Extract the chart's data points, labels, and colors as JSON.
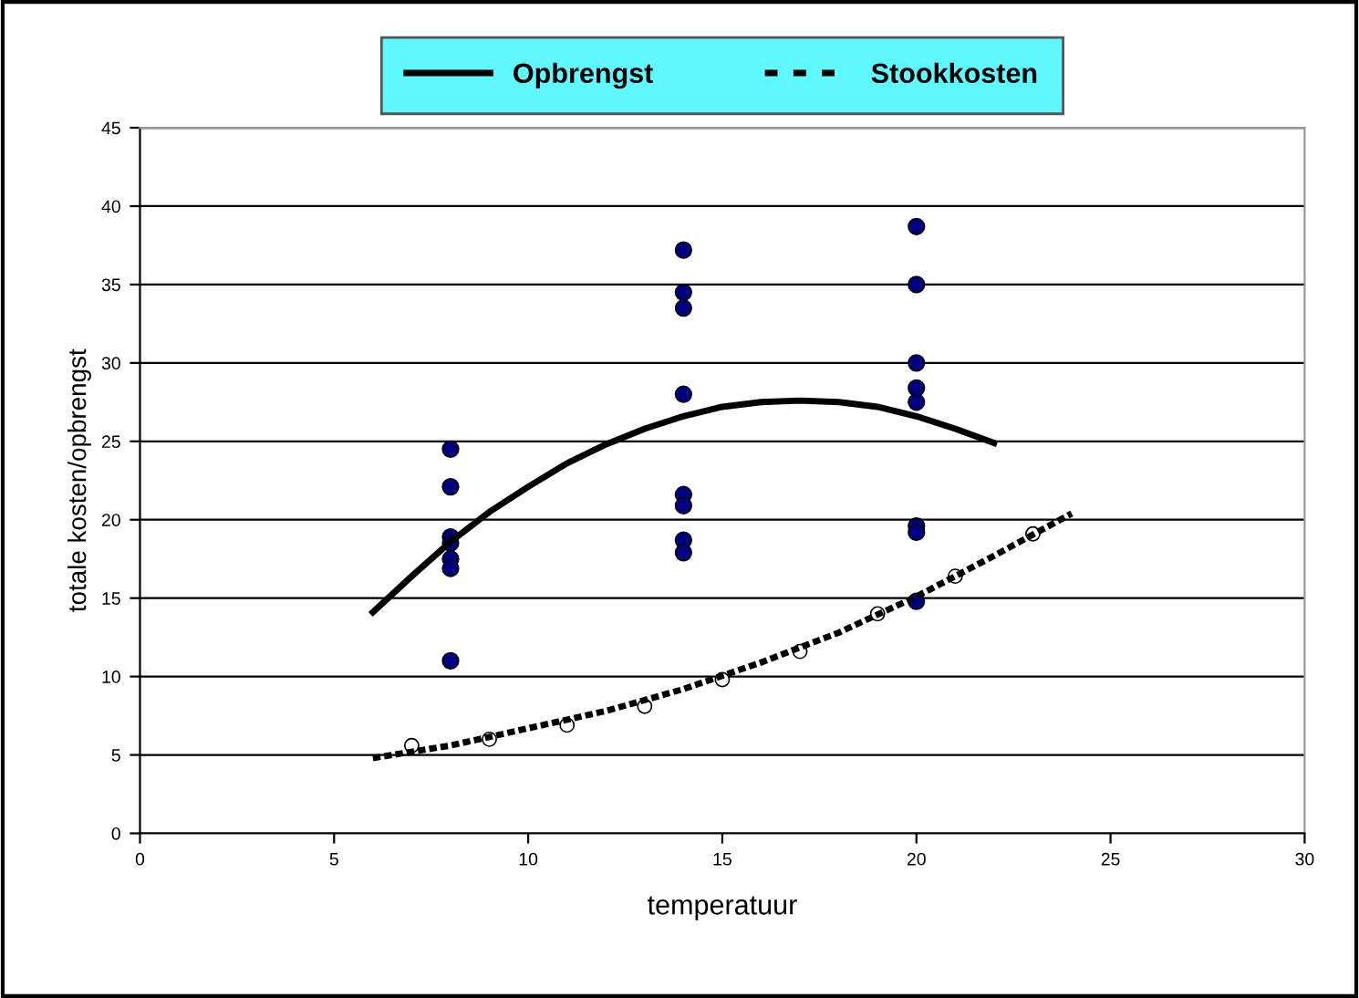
{
  "chart_data": {
    "type": "scatter",
    "xlabel": "temperatuur",
    "ylabel": "totale kosten/opbrengst",
    "xlim": [
      0,
      30
    ],
    "xticks": [
      0,
      5,
      10,
      15,
      20,
      25,
      30
    ],
    "ylim": [
      0,
      45
    ],
    "yticks": [
      0,
      5,
      10,
      15,
      20,
      25,
      30,
      35,
      40,
      45
    ],
    "grid": "y",
    "legend": "top",
    "marker": "circle",
    "series": [
      {
        "color": "#000080",
        "x": [
          8,
          8,
          8,
          8,
          8,
          8,
          8,
          14,
          14,
          14,
          14,
          14,
          14,
          14,
          14,
          20,
          20,
          20,
          20,
          20,
          20,
          20,
          20
        ],
        "values": [
          24.5,
          22.1,
          18.9,
          18.5,
          17.5,
          16.9,
          11.0,
          37.2,
          34.5,
          33.5,
          28.0,
          21.6,
          20.9,
          18.7,
          17.9,
          38.7,
          35.0,
          30.0,
          28.4,
          27.5,
          19.6,
          19.2,
          14.8
        ]
      },
      {
        "color": "#ffffff",
        "x": [
          7,
          9,
          11,
          13,
          15,
          17,
          19,
          21,
          23
        ],
        "values": [
          5.6,
          6.0,
          6.9,
          8.1,
          9.8,
          11.6,
          14.0,
          16.4,
          19.1
        ]
      },
      {
        "type": "line",
        "name": "Opbrengst",
        "color": "#000000",
        "line_style": "solid",
        "marker": "none",
        "x": [
          6,
          7,
          8,
          9,
          10,
          11,
          12,
          13,
          14,
          15,
          16,
          17,
          18,
          19,
          20,
          21,
          22
        ],
        "values": [
          14.1,
          16.4,
          18.6,
          20.5,
          22.1,
          23.6,
          24.8,
          25.8,
          26.6,
          27.2,
          27.5,
          27.6,
          27.5,
          27.2,
          26.6,
          25.8,
          24.9
        ]
      },
      {
        "type": "line",
        "name": "Stookkosten",
        "color": "#000000",
        "line_style": "dashed",
        "marker": "none",
        "x": [
          6,
          8,
          10,
          12,
          14,
          16,
          18,
          20,
          22,
          24
        ],
        "values": [
          4.8,
          5.6,
          6.7,
          7.8,
          9.2,
          10.9,
          12.8,
          15.1,
          17.7,
          20.4
        ]
      }
    ]
  }
}
